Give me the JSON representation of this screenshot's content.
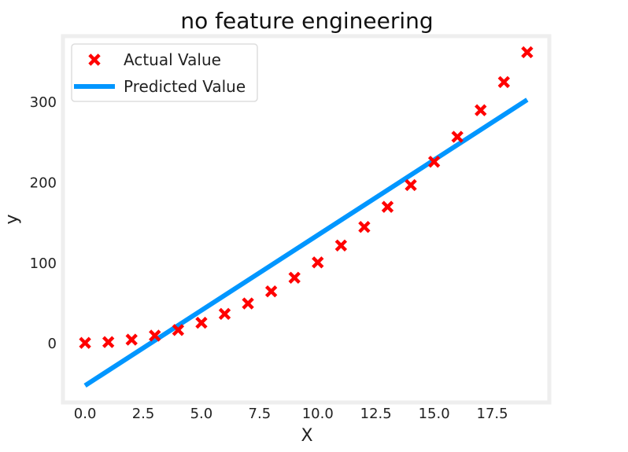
{
  "chart_data": {
    "type": "scatter",
    "title": "no feature engineering",
    "xlabel": "X",
    "ylabel": "y",
    "xlim": [
      -0.95,
      19.95
    ],
    "ylim": [
      -73,
      382
    ],
    "xticks": [
      0.0,
      2.5,
      5.0,
      7.5,
      10.0,
      12.5,
      15.0,
      17.5
    ],
    "xtick_labels": [
      "0.0",
      "2.5",
      "5.0",
      "7.5",
      "10.0",
      "12.5",
      "15.0",
      "17.5"
    ],
    "yticks": [
      0,
      100,
      200,
      300
    ],
    "ytick_labels": [
      "0",
      "100",
      "200",
      "300"
    ],
    "grid": false,
    "legend_position": "top-left",
    "series": [
      {
        "name": "Actual Value",
        "kind": "scatter",
        "marker": "x",
        "color": "#ff0000",
        "x": [
          0,
          1,
          2,
          3,
          4,
          5,
          6,
          7,
          8,
          9,
          10,
          11,
          12,
          13,
          14,
          15,
          16,
          17,
          18,
          19
        ],
        "values": [
          1,
          2,
          5,
          10,
          17,
          26,
          37,
          50,
          65,
          82,
          101,
          122,
          145,
          170,
          197,
          226,
          257,
          290,
          325,
          362
        ]
      },
      {
        "name": "Predicted Value",
        "kind": "line",
        "color": "#0096ff",
        "x": [
          0,
          19
        ],
        "values": [
          -52,
          303
        ]
      }
    ],
    "axes_border_color": "#eeeeee"
  }
}
